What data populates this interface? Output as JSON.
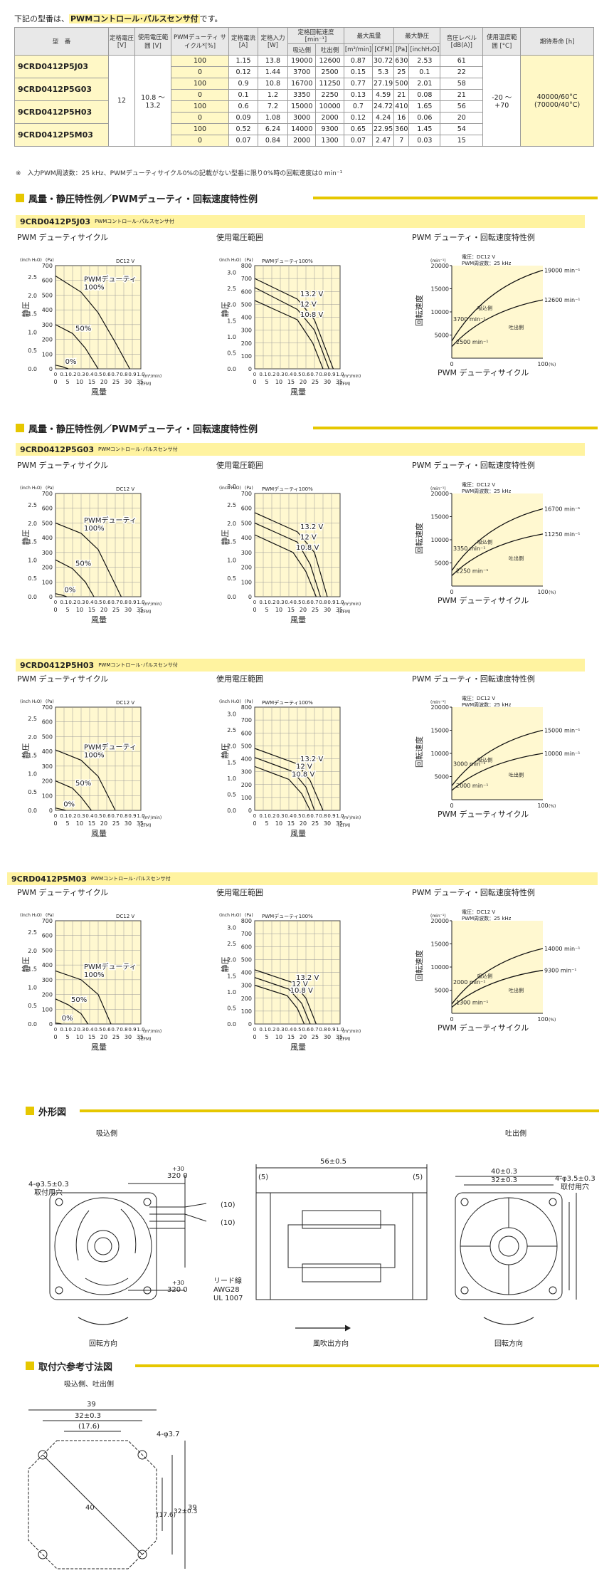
{
  "intro": {
    "prefix": "下記の型番は、",
    "highlight": "PWMコントロール･パルスセンサ付",
    "suffix": "です。"
  },
  "spec_table": {
    "headers": [
      "型　番",
      "定格電圧\n[V]",
      "使用電圧範囲\n[V]",
      "PWMデューティ\nサイクル*[%]",
      "定格電流\n[A]",
      "定格入力\n[W]",
      "定格回転速度\n[min⁻¹]",
      "最大風量",
      "最大静圧",
      "音圧レベル\n[dB(A)]",
      "使用温度範囲\n[°C]",
      "期待寿命\n[h]"
    ],
    "sub_headers": [
      "吸込側",
      "吐出側",
      "[m³/min]",
      "[CFM]",
      "[Pa]",
      "[inchH₂O]"
    ],
    "rated_voltage": "12",
    "voltage_range": "10.8 〜 13.2",
    "temp_range": "-20 〜 +70",
    "life": "40000/60°C\n(70000/40°C)",
    "rows": [
      {
        "model": "9CRD0412P5J03",
        "duty": "100",
        "current": "1.15",
        "input": "13.8",
        "rpm_in": "19000",
        "rpm_out": "12600",
        "flow_m3": "0.87",
        "flow_cfm": "30.72",
        "sp_pa": "630",
        "sp_in": "2.53",
        "noise": "61"
      },
      {
        "model": "",
        "duty": "0",
        "current": "0.12",
        "input": "1.44",
        "rpm_in": "3700",
        "rpm_out": "2500",
        "flow_m3": "0.15",
        "flow_cfm": "5.3",
        "sp_pa": "25",
        "sp_in": "0.1",
        "noise": "22"
      },
      {
        "model": "9CRD0412P5G03",
        "duty": "100",
        "current": "0.9",
        "input": "10.8",
        "rpm_in": "16700",
        "rpm_out": "11250",
        "flow_m3": "0.77",
        "flow_cfm": "27.19",
        "sp_pa": "500",
        "sp_in": "2.01",
        "noise": "58"
      },
      {
        "model": "",
        "duty": "0",
        "current": "0.1",
        "input": "1.2",
        "rpm_in": "3350",
        "rpm_out": "2250",
        "flow_m3": "0.13",
        "flow_cfm": "4.59",
        "sp_pa": "21",
        "sp_in": "0.08",
        "noise": "21"
      },
      {
        "model": "9CRD0412P5H03",
        "duty": "100",
        "current": "0.6",
        "input": "7.2",
        "rpm_in": "15000",
        "rpm_out": "10000",
        "flow_m3": "0.7",
        "flow_cfm": "24.72",
        "sp_pa": "410",
        "sp_in": "1.65",
        "noise": "56"
      },
      {
        "model": "",
        "duty": "0",
        "current": "0.09",
        "input": "1.08",
        "rpm_in": "3000",
        "rpm_out": "2000",
        "flow_m3": "0.12",
        "flow_cfm": "4.24",
        "sp_pa": "16",
        "sp_in": "0.06",
        "noise": "20"
      },
      {
        "model": "9CRD0412P5M03",
        "duty": "100",
        "current": "0.52",
        "input": "6.24",
        "rpm_in": "14000",
        "rpm_out": "9300",
        "flow_m3": "0.65",
        "flow_cfm": "22.95",
        "sp_pa": "360",
        "sp_in": "1.45",
        "noise": "54"
      },
      {
        "model": "",
        "duty": "0",
        "current": "0.07",
        "input": "0.84",
        "rpm_in": "2000",
        "rpm_out": "1300",
        "flow_m3": "0.07",
        "flow_cfm": "2.47",
        "sp_pa": "7",
        "sp_in": "0.03",
        "noise": "15"
      }
    ]
  },
  "note": "※　入力PWM周波数：25 kHz、PWMデューティサイクル0%の記載がない型番に限り0%時の回転速度は0 min⁻¹",
  "section_title": "風量・静圧特性例／PWMデューティ・回転速度特性例",
  "model_suffix": "PWMコントロール･パルスセンサ付",
  "chart_titles": {
    "duty": "PWM デューティサイクル",
    "voltage": "使用電圧範囲",
    "rpm": "PWM デューティ・回転速度特性例"
  },
  "axis": {
    "static_pressure": "静圧",
    "airflow": "風量",
    "rpm": "回転速度",
    "duty_x": "PWM デューティサイクル",
    "inch": "(inch H₂O)",
    "pa": "(Pa)",
    "m3min": "(m³/min)",
    "cfm": "(CFM)",
    "minu": "(min⁻¹)",
    "pct": "(%)",
    "dc12": "DC12 V",
    "pwm100": "PWMデューティ100%",
    "pwm_label": "PWMデューティ",
    "supply": "電圧：DC12 V",
    "freq": "PWM周波数：25 kHz",
    "inlet": "吸込側",
    "outlet": "吐出側"
  },
  "colors": {
    "accent": "#e6c700",
    "chart_bg": "#fff8d0",
    "model_bar": "#fff3a0"
  },
  "chart_data": [
    {
      "type": "line",
      "model": "9CRD0412P5J03",
      "title": "PWM デューティサイクル",
      "xlabel": "風量",
      "ylabel": "静圧",
      "xlim": [
        0,
        1.0
      ],
      "ylim": [
        0,
        700
      ],
      "series": [
        {
          "name": "100%",
          "x": [
            0,
            0.3,
            0.5,
            0.7,
            0.87
          ],
          "y": [
            630,
            520,
            380,
            180,
            0
          ]
        },
        {
          "name": "50%",
          "x": [
            0,
            0.2,
            0.35,
            0.5
          ],
          "y": [
            300,
            240,
            140,
            0
          ]
        },
        {
          "name": "0%",
          "x": [
            0,
            0.08,
            0.15
          ],
          "y": [
            25,
            15,
            0
          ]
        }
      ]
    },
    {
      "type": "line",
      "model": "9CRD0412P5J03",
      "title": "使用電圧範囲",
      "xlabel": "風量",
      "ylabel": "静圧",
      "xlim": [
        0,
        1.0
      ],
      "ylim": [
        0,
        800
      ],
      "series": [
        {
          "name": "13.2 V",
          "x": [
            0,
            0.5,
            0.7,
            0.92
          ],
          "y": [
            700,
            540,
            380,
            0
          ]
        },
        {
          "name": "12 V",
          "x": [
            0,
            0.5,
            0.7,
            0.87
          ],
          "y": [
            630,
            460,
            300,
            0
          ]
        },
        {
          "name": "10.8 V",
          "x": [
            0,
            0.5,
            0.68,
            0.8
          ],
          "y": [
            530,
            380,
            200,
            0
          ]
        }
      ]
    },
    {
      "type": "line",
      "model": "9CRD0412P5J03",
      "title": "PWM デューティ・回転速度特性例",
      "xlabel": "PWM デューティサイクル",
      "ylabel": "回転速度",
      "xlim": [
        0,
        100
      ],
      "ylim": [
        0,
        20000
      ],
      "series": [
        {
          "name": "吸込側",
          "x": [
            0,
            100
          ],
          "y": [
            3700,
            19000
          ],
          "labels": [
            "3700 min⁻¹",
            "19000 min⁻¹"
          ]
        },
        {
          "name": "吐出側",
          "x": [
            0,
            100
          ],
          "y": [
            2500,
            12600
          ],
          "labels": [
            "2500 min⁻¹",
            "12600 min⁻¹"
          ]
        }
      ]
    },
    {
      "type": "line",
      "model": "9CRD0412P5G03",
      "title": "PWM デューティサイクル",
      "xlabel": "風量",
      "ylabel": "静圧",
      "xlim": [
        0,
        1.0
      ],
      "ylim": [
        0,
        700
      ],
      "series": [
        {
          "name": "100%",
          "x": [
            0,
            0.3,
            0.5,
            0.77
          ],
          "y": [
            500,
            430,
            320,
            0
          ]
        },
        {
          "name": "50%",
          "x": [
            0,
            0.2,
            0.35,
            0.45
          ],
          "y": [
            250,
            190,
            100,
            0
          ]
        },
        {
          "name": "0%",
          "x": [
            0,
            0.07,
            0.13
          ],
          "y": [
            21,
            12,
            0
          ]
        }
      ]
    },
    {
      "type": "line",
      "model": "9CRD0412P5G03",
      "title": "使用電圧範囲",
      "xlabel": "風量",
      "ylabel": "静圧",
      "xlim": [
        0,
        1.0
      ],
      "ylim": [
        0,
        700
      ],
      "series": [
        {
          "name": "13.2 V",
          "x": [
            0,
            0.5,
            0.7,
            0.85
          ],
          "y": [
            570,
            440,
            300,
            0
          ]
        },
        {
          "name": "12 V",
          "x": [
            0,
            0.5,
            0.65,
            0.77
          ],
          "y": [
            500,
            370,
            220,
            0
          ]
        },
        {
          "name": "10.8 V",
          "x": [
            0,
            0.45,
            0.6,
            0.72
          ],
          "y": [
            420,
            300,
            170,
            0
          ]
        }
      ]
    },
    {
      "type": "line",
      "model": "9CRD0412P5G03",
      "title": "PWM デューティ・回転速度特性例",
      "xlabel": "PWM デューティサイクル",
      "ylabel": "回転速度",
      "xlim": [
        0,
        100
      ],
      "ylim": [
        0,
        20000
      ],
      "series": [
        {
          "name": "吸込側",
          "x": [
            0,
            100
          ],
          "y": [
            3350,
            16700
          ],
          "labels": [
            "3350 min⁻¹",
            "16700 min⁻¹"
          ]
        },
        {
          "name": "吐出側",
          "x": [
            0,
            100
          ],
          "y": [
            2250,
            11250
          ],
          "labels": [
            "2250 min⁻¹",
            "11250 min⁻¹"
          ]
        }
      ]
    },
    {
      "type": "line",
      "model": "9CRD0412P5H03",
      "title": "PWM デューティサイクル",
      "xlabel": "風量",
      "ylabel": "静圧",
      "xlim": [
        0,
        1.0
      ],
      "ylim": [
        0,
        700
      ],
      "series": [
        {
          "name": "100%",
          "x": [
            0,
            0.3,
            0.5,
            0.7
          ],
          "y": [
            410,
            340,
            230,
            0
          ]
        },
        {
          "name": "50%",
          "x": [
            0,
            0.2,
            0.3,
            0.42
          ],
          "y": [
            200,
            150,
            90,
            0
          ]
        },
        {
          "name": "0%",
          "x": [
            0,
            0.06,
            0.12
          ],
          "y": [
            16,
            8,
            0
          ]
        }
      ]
    },
    {
      "type": "line",
      "model": "9CRD0412P5H03",
      "title": "使用電圧範囲",
      "xlabel": "風量",
      "ylabel": "静圧",
      "xlim": [
        0,
        1.0
      ],
      "ylim": [
        0,
        800
      ],
      "series": [
        {
          "name": "13.2 V",
          "x": [
            0,
            0.5,
            0.65,
            0.8
          ],
          "y": [
            480,
            360,
            230,
            0
          ]
        },
        {
          "name": "12 V",
          "x": [
            0,
            0.45,
            0.6,
            0.7
          ],
          "y": [
            410,
            300,
            180,
            0
          ]
        },
        {
          "name": "10.8 V",
          "x": [
            0,
            0.4,
            0.55,
            0.65
          ],
          "y": [
            340,
            240,
            130,
            0
          ]
        }
      ]
    },
    {
      "type": "line",
      "model": "9CRD0412P5H03",
      "title": "PWM デューティ・回転速度特性例",
      "xlabel": "PWM デューティサイクル",
      "ylabel": "回転速度",
      "xlim": [
        0,
        100
      ],
      "ylim": [
        0,
        20000
      ],
      "series": [
        {
          "name": "吸込側",
          "x": [
            0,
            100
          ],
          "y": [
            3000,
            15000
          ],
          "labels": [
            "3000 min⁻¹",
            "15000 min⁻¹"
          ]
        },
        {
          "name": "吐出側",
          "x": [
            0,
            100
          ],
          "y": [
            2000,
            10000
          ],
          "labels": [
            "2000 min⁻¹",
            "10000 min⁻¹"
          ]
        }
      ]
    },
    {
      "type": "line",
      "model": "9CRD0412P5M03",
      "title": "PWM デューティサイクル",
      "xlabel": "風量",
      "ylabel": "静圧",
      "xlim": [
        0,
        1.0
      ],
      "ylim": [
        0,
        700
      ],
      "series": [
        {
          "name": "100%",
          "x": [
            0,
            0.3,
            0.5,
            0.65
          ],
          "y": [
            360,
            300,
            200,
            0
          ]
        },
        {
          "name": "50%",
          "x": [
            0,
            0.15,
            0.3,
            0.38
          ],
          "y": [
            170,
            130,
            70,
            0
          ]
        },
        {
          "name": "0%",
          "x": [
            0,
            0.04,
            0.07
          ],
          "y": [
            7,
            4,
            0
          ]
        }
      ]
    },
    {
      "type": "line",
      "model": "9CRD0412P5M03",
      "title": "使用電圧範囲",
      "xlabel": "風量",
      "ylabel": "静圧",
      "xlim": [
        0,
        1.0
      ],
      "ylim": [
        0,
        800
      ],
      "series": [
        {
          "name": "13.2 V",
          "x": [
            0,
            0.45,
            0.6,
            0.72
          ],
          "y": [
            420,
            320,
            200,
            0
          ]
        },
        {
          "name": "12 V",
          "x": [
            0,
            0.4,
            0.55,
            0.65
          ],
          "y": [
            360,
            270,
            160,
            0
          ]
        },
        {
          "name": "10.8 V",
          "x": [
            0,
            0.38,
            0.5,
            0.58
          ],
          "y": [
            300,
            220,
            120,
            0
          ]
        }
      ]
    },
    {
      "type": "line",
      "model": "9CRD0412P5M03",
      "title": "PWM デューティ・回転速度特性例",
      "xlabel": "PWM デューティサイクル",
      "ylabel": "回転速度",
      "xlim": [
        0,
        100
      ],
      "ylim": [
        0,
        20000
      ],
      "series": [
        {
          "name": "吸込側",
          "x": [
            0,
            100
          ],
          "y": [
            2000,
            14000
          ],
          "labels": [
            "2000 min⁻¹",
            "14000 min⁻¹"
          ]
        },
        {
          "name": "吐出側",
          "x": [
            0,
            100
          ],
          "y": [
            1300,
            9300
          ],
          "labels": [
            "1300 min⁻¹",
            "9300 min⁻¹"
          ]
        }
      ]
    }
  ],
  "outline": {
    "title": "外形図",
    "inlet": "吸込側",
    "outlet": "吐出側",
    "hole": "4-φ3.5±0.3",
    "hole_label": "取付用穴",
    "lead_top": "+30",
    "lead_len": "320  0",
    "lead_w": "(10)",
    "lead_wire": "リード線",
    "awg": "AWG28",
    "ul": "UL 1007",
    "depth": "56±0.5",
    "edge": "(5)",
    "w40": "40±0.3",
    "w32": "32±0.3",
    "rotation": "回転方向",
    "airflow": "風吹出方向"
  },
  "mount": {
    "title": "取付穴参考寸法図",
    "subtitle": "吸込側、吐出側",
    "d39": "39",
    "d32": "32±0.3",
    "d17": "(17.6)",
    "hole": "4-φ3.7",
    "d40": "40"
  }
}
